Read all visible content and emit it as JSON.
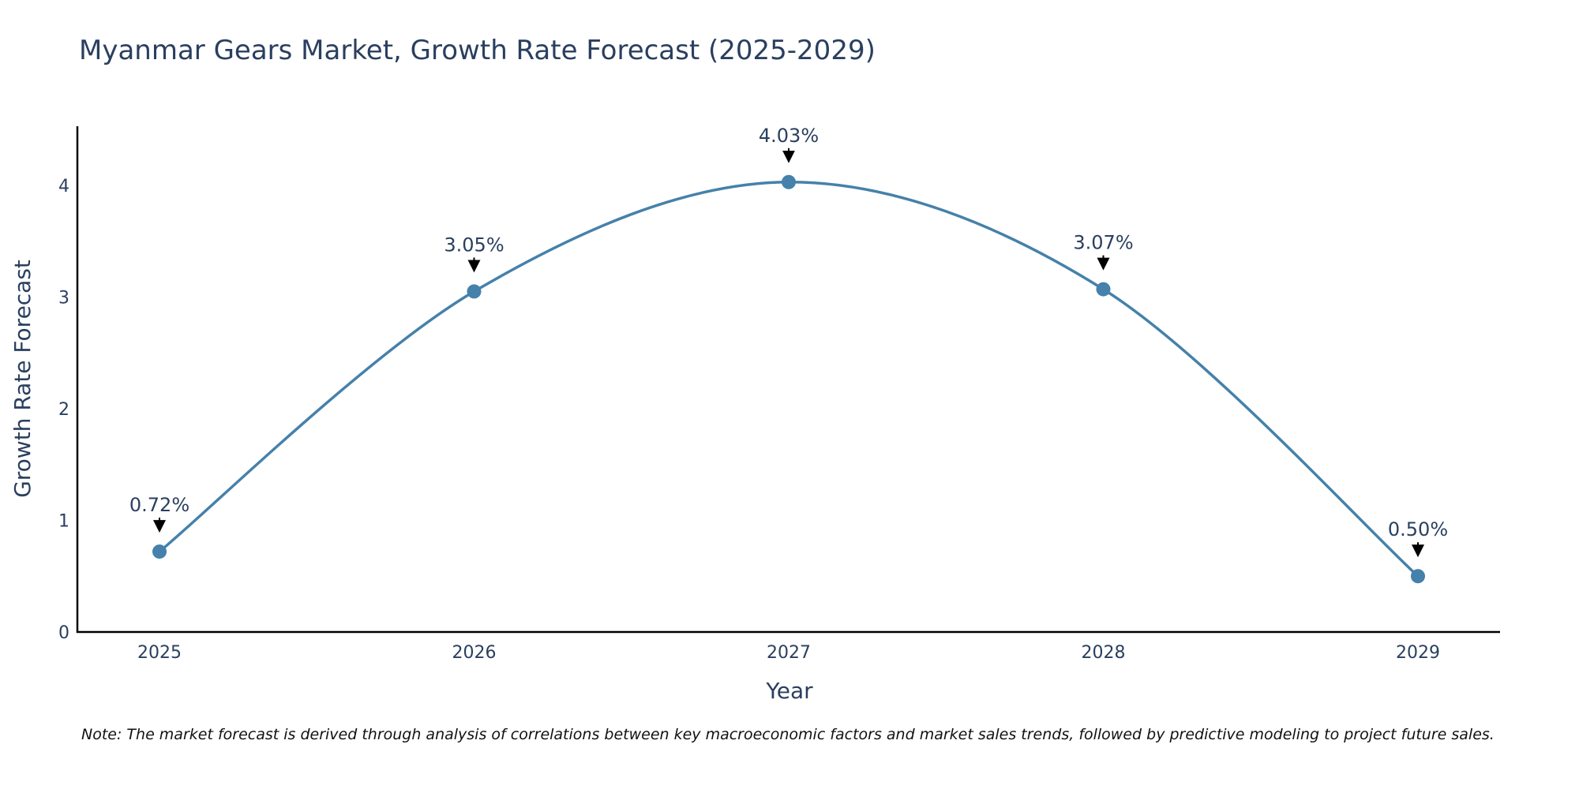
{
  "chart_data": {
    "type": "line",
    "title": "Myanmar Gears Market, Growth Rate Forecast (2025-2029)",
    "xlabel": "Year",
    "ylabel": "Growth Rate Forecast",
    "categories": [
      "2025",
      "2026",
      "2027",
      "2028",
      "2029"
    ],
    "series": [
      {
        "name": "Growth Rate Forecast",
        "values": [
          0.72,
          3.05,
          4.03,
          3.07,
          0.5
        ],
        "labels": [
          "0.72%",
          "3.05%",
          "4.03%",
          "3.07%",
          "0.50%"
        ],
        "color": "#4581aa",
        "smoothed": true
      }
    ],
    "yticks": [
      0,
      1,
      2,
      3,
      4
    ],
    "ylim": [
      0,
      4.53
    ],
    "grid": false,
    "note": "Note: The market forecast is derived through analysis of correlations between key macroeconomic factors and market sales trends, followed by predictive modeling to project future sales."
  },
  "colors": {
    "line": "#4581aa",
    "text": "#2a3f5f",
    "axis": "#000000",
    "arrow": "#000000"
  }
}
